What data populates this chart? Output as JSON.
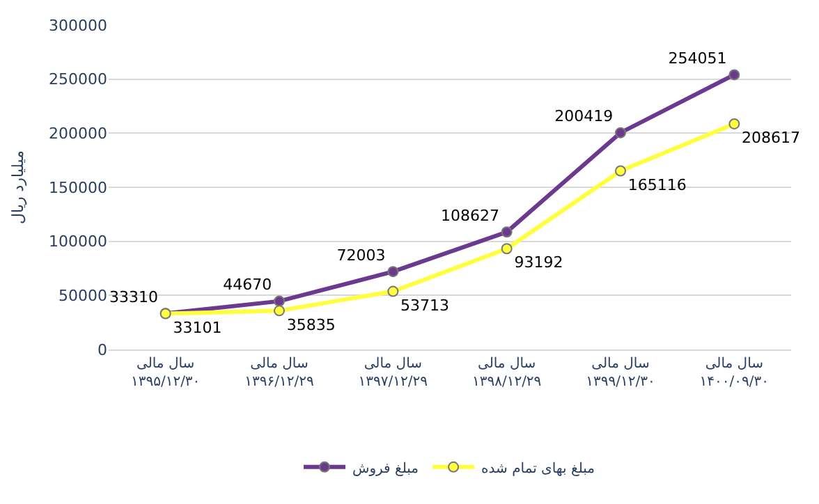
{
  "chart_data": {
    "type": "line",
    "ylabel": "میلیارد ریال",
    "categories": [
      "سال مالی\n۱۳۹۵/۱۲/۳۰",
      "سال مالی\n۱۳۹۶/۱۲/۲۹",
      "سال مالی\n۱۳۹۷/۱۲/۲۹",
      "سال مالی\n۱۳۹۸/۱۲/۲۹",
      "سال مالی\n۱۳۹۹/۱۲/۳۰",
      "سال مالی\n۱۴۰۰/۰۹/۳۰"
    ],
    "series": [
      {
        "name": "مبلغ فروش",
        "color": "#6b3a8e",
        "values": [
          33310,
          44670,
          72003,
          108627,
          200419,
          254051
        ]
      },
      {
        "name": "مبلغ بهای تمام شده",
        "color": "#ffff40",
        "values": [
          33101,
          35835,
          53713,
          93192,
          165116,
          208617
        ]
      }
    ],
    "ylim": [
      0,
      300000
    ],
    "yticks": [
      0,
      50000,
      100000,
      150000,
      200000,
      250000,
      300000
    ],
    "grid": "y",
    "legend": "bottom",
    "marker": "circle",
    "line_style": "solid",
    "data_labels": true
  }
}
